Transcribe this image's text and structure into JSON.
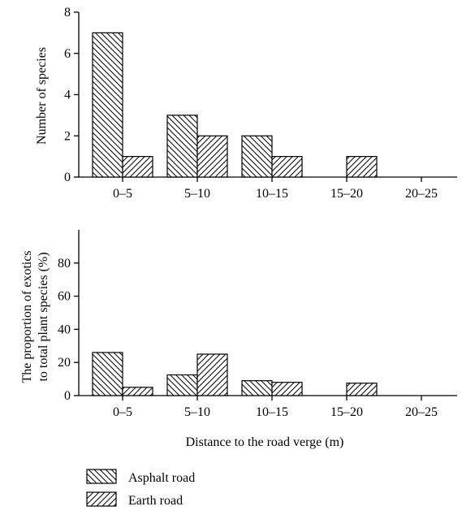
{
  "chart_data": [
    {
      "type": "bar",
      "categories": [
        "0–5",
        "5–10",
        "10–15",
        "15–20",
        "20–25"
      ],
      "series": [
        {
          "name": "Asphalt road",
          "values": [
            7,
            3,
            2,
            0,
            0
          ]
        },
        {
          "name": "Earth road",
          "values": [
            1,
            2,
            1,
            1,
            0
          ]
        }
      ],
      "xlabel": "",
      "ylabel": "Number of species",
      "ylim": [
        0,
        8
      ],
      "yticks": [
        0,
        2,
        4,
        6,
        8
      ],
      "grid": false
    },
    {
      "type": "bar",
      "categories": [
        "0–5",
        "5–10",
        "10–15",
        "15–20",
        "20–25"
      ],
      "series": [
        {
          "name": "Asphalt road",
          "values": [
            26,
            12.5,
            9,
            0,
            0
          ]
        },
        {
          "name": "Earth road",
          "values": [
            5,
            25,
            8,
            7.5,
            0
          ]
        }
      ],
      "xlabel": "Distance to the road verge (m)",
      "ylabel_lines": [
        "The proportion of exotics",
        "to total plant species (%)"
      ],
      "ylim": [
        0,
        100
      ],
      "yticks": [
        0,
        20,
        40,
        60,
        80
      ],
      "grid": false
    }
  ],
  "legend": {
    "placement": "bottom-left",
    "items": [
      {
        "label": "Asphalt road",
        "pattern": "backslash-hatch"
      },
      {
        "label": "Earth road",
        "pattern": "slash-hatch"
      }
    ]
  }
}
